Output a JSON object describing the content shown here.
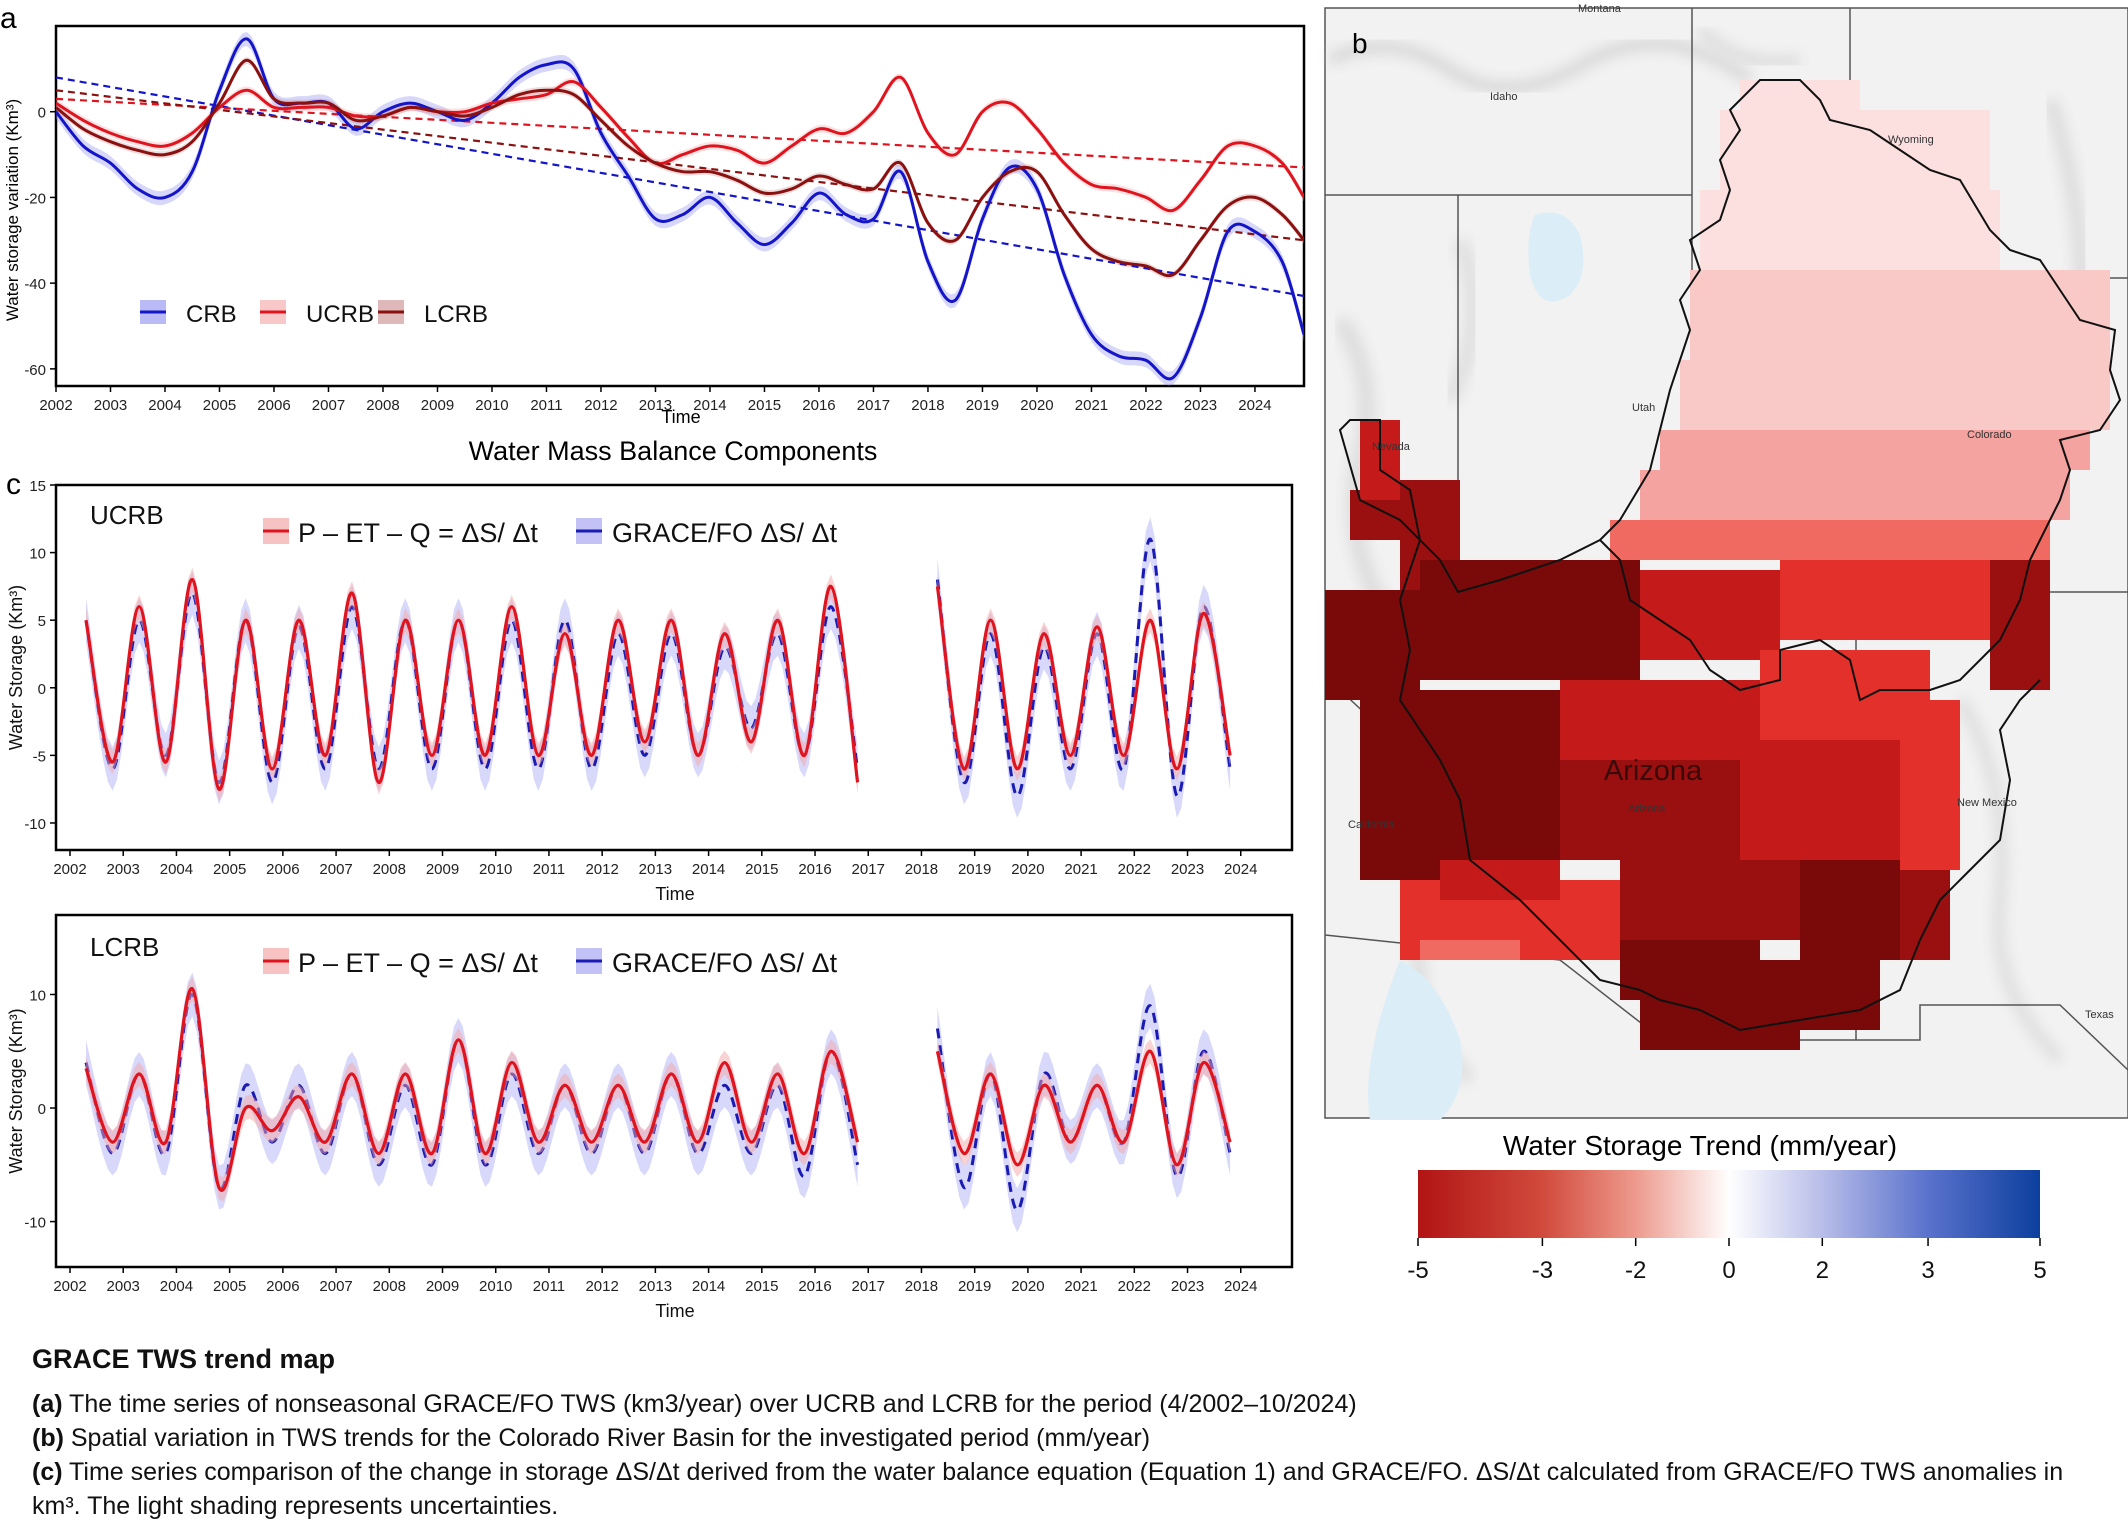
{
  "panels": {
    "a": {
      "letter": "a",
      "xlabel": "Time",
      "ylabel": "Water storage variation  (Km³)",
      "subtitle": "Water Mass Balance Components"
    },
    "b": {
      "letter": "b"
    },
    "c": {
      "letter": "c"
    }
  },
  "colors": {
    "CRB": "#1414c8",
    "UCRB": "#e0141e",
    "LCRB": "#8b1010",
    "grace": "#1a1ab4",
    "wb": "#e0141e"
  },
  "chart_data": [
    {
      "type": "line",
      "panel": "a",
      "xlabel": "Time",
      "ylabel": "Water storage variation  (Km³)",
      "xlim": [
        2002,
        2024.9
      ],
      "ylim": [
        -64,
        20
      ],
      "xticks": [
        "2002",
        "2003",
        "2004",
        "2005",
        "2006",
        "2007",
        "2008",
        "2009",
        "2010",
        "2011",
        "2012",
        "2013",
        "2014",
        "2015",
        "2016",
        "2017",
        "2018",
        "2019",
        "2020",
        "2021",
        "2022",
        "2023",
        "2024"
      ],
      "yticks": [
        "0",
        "-20",
        "-40",
        "-60"
      ],
      "legend": [
        "CRB",
        "UCRB",
        "LCRB"
      ],
      "legend_position": "lower-left",
      "x": [
        2002.0,
        2002.5,
        2003.0,
        2003.5,
        2004.0,
        2004.5,
        2005.0,
        2005.5,
        2006.0,
        2006.5,
        2007.0,
        2007.5,
        2008.0,
        2008.5,
        2009.0,
        2009.5,
        2010.0,
        2010.5,
        2011.0,
        2011.5,
        2012.0,
        2012.5,
        2013.0,
        2013.5,
        2014.0,
        2014.5,
        2015.0,
        2015.5,
        2016.0,
        2016.5,
        2017.0,
        2017.5,
        2018.0,
        2018.5,
        2019.0,
        2019.5,
        2020.0,
        2020.5,
        2021.0,
        2021.5,
        2022.0,
        2022.5,
        2023.0,
        2023.5,
        2024.0,
        2024.5,
        2024.9
      ],
      "series": [
        {
          "name": "CRB",
          "values": [
            0,
            -8,
            -12,
            -18,
            -20,
            -14,
            5,
            17,
            3,
            2,
            2,
            -4,
            0,
            2,
            0,
            -2,
            2,
            8,
            11,
            10,
            -5,
            -15,
            -25,
            -24,
            -20,
            -26,
            -31,
            -26,
            -19,
            -24,
            -25,
            -14,
            -35,
            -44,
            -25,
            -13,
            -18,
            -38,
            -52,
            -57,
            -58,
            -62,
            -48,
            -28,
            -28,
            -35,
            -52
          ]
        },
        {
          "name": "UCRB",
          "values": [
            2,
            -2,
            -5,
            -7,
            -8,
            -5,
            1,
            5,
            1,
            1,
            1,
            -1,
            -1,
            1,
            0,
            0,
            2,
            3,
            4,
            7,
            1,
            -6,
            -12,
            -10,
            -8,
            -9,
            -12,
            -8,
            -4,
            -5,
            0,
            8,
            -5,
            -10,
            0,
            2,
            -4,
            -12,
            -17,
            -18,
            -20,
            -23,
            -16,
            -8,
            -8,
            -12,
            -20
          ]
        },
        {
          "name": "LCRB",
          "values": [
            1,
            -4,
            -7,
            -9,
            -10,
            -7,
            2,
            12,
            3,
            2,
            2,
            -2,
            -1,
            1,
            0,
            -1,
            1,
            4,
            5,
            4,
            -2,
            -8,
            -12,
            -14,
            -14,
            -16,
            -19,
            -18,
            -15,
            -17,
            -18,
            -12,
            -26,
            -30,
            -20,
            -14,
            -14,
            -24,
            -32,
            -35,
            -36,
            -38,
            -30,
            -22,
            -20,
            -24,
            -30
          ]
        }
      ],
      "trendlines": [
        {
          "series": "CRB",
          "from": [
            2002,
            8
          ],
          "to": [
            2024.9,
            -43
          ]
        },
        {
          "series": "UCRB",
          "from": [
            2002,
            3
          ],
          "to": [
            2024.9,
            -13
          ]
        },
        {
          "series": "LCRB",
          "from": [
            2002,
            5
          ],
          "to": [
            2024.9,
            -30
          ]
        }
      ]
    },
    {
      "type": "line",
      "panel": "c-ucrb",
      "label": "UCRB",
      "xlabel": "Time",
      "ylabel": "Water Storage (Km³)",
      "xlim": [
        2002,
        2024.7
      ],
      "ylim": [
        -12,
        15
      ],
      "yticks": [
        "15",
        "10",
        "5",
        "0",
        "-5",
        "-10"
      ],
      "xticks": [
        "2002",
        "2003",
        "2004",
        "2005",
        "2006",
        "2007",
        "2008",
        "2009",
        "2010",
        "2011",
        "2012",
        "2013",
        "2014",
        "2015",
        "2016",
        "2017",
        "2018",
        "2019",
        "2020",
        "2021",
        "2022",
        "2023",
        "2024"
      ],
      "legend": [
        "P – ET – Q = ΔS/ Δt",
        "GRACE/FO ΔS/ Δt"
      ],
      "gap": [
        2017.5,
        2018.4
      ],
      "series": [
        {
          "name": "P – ET – Q = ΔS/ Δt",
          "amplitudes": [
            5,
            -5.5,
            6,
            -5.5,
            8,
            -7.5,
            5,
            -6,
            5,
            -5,
            7,
            -7,
            5,
            -5,
            5,
            -5,
            6,
            -5,
            4,
            -5,
            5,
            -4,
            5,
            -5,
            4,
            -4,
            5,
            -5,
            7.5,
            -7,
            null,
            null,
            7.5,
            -6,
            5,
            -6,
            4,
            -5,
            4.5,
            -5,
            5,
            -6,
            5.5,
            -5
          ]
        },
        {
          "name": "GRACE/FO ΔS/ Δt",
          "amplitudes": [
            5,
            -6,
            5,
            -5,
            7,
            -7,
            5,
            -7,
            4.5,
            -6,
            6,
            -6,
            5,
            -6,
            5,
            -6,
            5,
            -6,
            5,
            -6,
            4,
            -5,
            4,
            -5,
            3,
            -3,
            4,
            -5,
            6,
            -6,
            null,
            null,
            8,
            -7,
            4,
            -8,
            3,
            -6,
            4,
            -6,
            11,
            -8,
            6,
            -6
          ]
        }
      ]
    },
    {
      "type": "line",
      "panel": "c-lcrb",
      "label": "LCRB",
      "xlabel": "Time",
      "ylabel": "Water Storage (Km³)",
      "xlim": [
        2002,
        2024.7
      ],
      "ylim": [
        -14,
        17
      ],
      "yticks": [
        "10",
        "0",
        "-10"
      ],
      "xticks": [
        "2002",
        "2003",
        "2004",
        "2005",
        "2006",
        "2007",
        "2008",
        "2009",
        "2010",
        "2011",
        "2012",
        "2013",
        "2014",
        "2015",
        "2016",
        "2017",
        "2018",
        "2019",
        "2020",
        "2021",
        "2022",
        "2023",
        "2024"
      ],
      "legend": [
        "P – ET – Q = ΔS/ Δt",
        "GRACE/FO ΔS/ Δt"
      ],
      "gap": [
        2017.5,
        2018.4
      ],
      "series": [
        {
          "name": "P – ET – Q = ΔS/ Δt",
          "amplitudes": [
            3.5,
            -3,
            3,
            -3,
            10.5,
            -7,
            0,
            -2,
            1,
            -3,
            3,
            -4,
            3,
            -4,
            6,
            -4,
            4,
            -3,
            2,
            -3,
            2,
            -3,
            3,
            -3,
            4,
            -3,
            3,
            -4,
            5,
            -3,
            null,
            null,
            5,
            -4,
            3,
            -5,
            2,
            -3,
            2,
            -3,
            5,
            -5,
            4,
            -3
          ]
        },
        {
          "name": "GRACE/FO ΔS/ Δt",
          "amplitudes": [
            4,
            -4,
            3,
            -4,
            10,
            -7,
            2,
            -3,
            2,
            -4,
            3,
            -5,
            2,
            -5,
            6,
            -5,
            3,
            -4,
            2,
            -4,
            2,
            -4,
            3,
            -4,
            2,
            -4,
            2,
            -6,
            5,
            -5,
            null,
            null,
            7,
            -7,
            3,
            -9,
            3,
            -3,
            2,
            -3,
            9,
            -6,
            5,
            -4
          ]
        }
      ]
    },
    {
      "type": "heatmap",
      "panel": "b",
      "colorbar_label": "Water Storage Trend (mm/year)",
      "colorbar_ticks": [
        "-5",
        "-3",
        "-2",
        "0",
        "2",
        "3",
        "5"
      ],
      "colorbar_range": [
        -5,
        5
      ],
      "colorbar_colors": [
        "#b11414",
        "#e8705f",
        "#f7d2cc",
        "#ffffff",
        "#c5c8ee",
        "#5e74cf",
        "#0c3f9e"
      ],
      "map_labels": [
        "Montana",
        "Idaho",
        "Wyoming",
        "Utah",
        "Colorado",
        "Nevada",
        "Arizona",
        "California",
        "New Mexico",
        "Texas"
      ],
      "region_label": "Arizona"
    }
  ],
  "caption": {
    "title": "GRACE TWS trend map",
    "lines": [
      {
        "tag": "(a)",
        "text": " The time series of nonseasonal GRACE/FO TWS (km3/year) over UCRB and LCRB for the period (4/2002–10/2024)"
      },
      {
        "tag": "(b)",
        "text": " Spatial variation in TWS trends for the Colorado River Basin for the investigated period (mm/year)"
      },
      {
        "tag": "(c)",
        "text": " Time series comparison of the change in storage ΔS/Δt derived from the water balance equation (Equation 1) and GRACE/FO. ΔS/Δt calculated from GRACE/FO TWS anomalies in km³. The light shading represents uncertainties."
      }
    ]
  }
}
